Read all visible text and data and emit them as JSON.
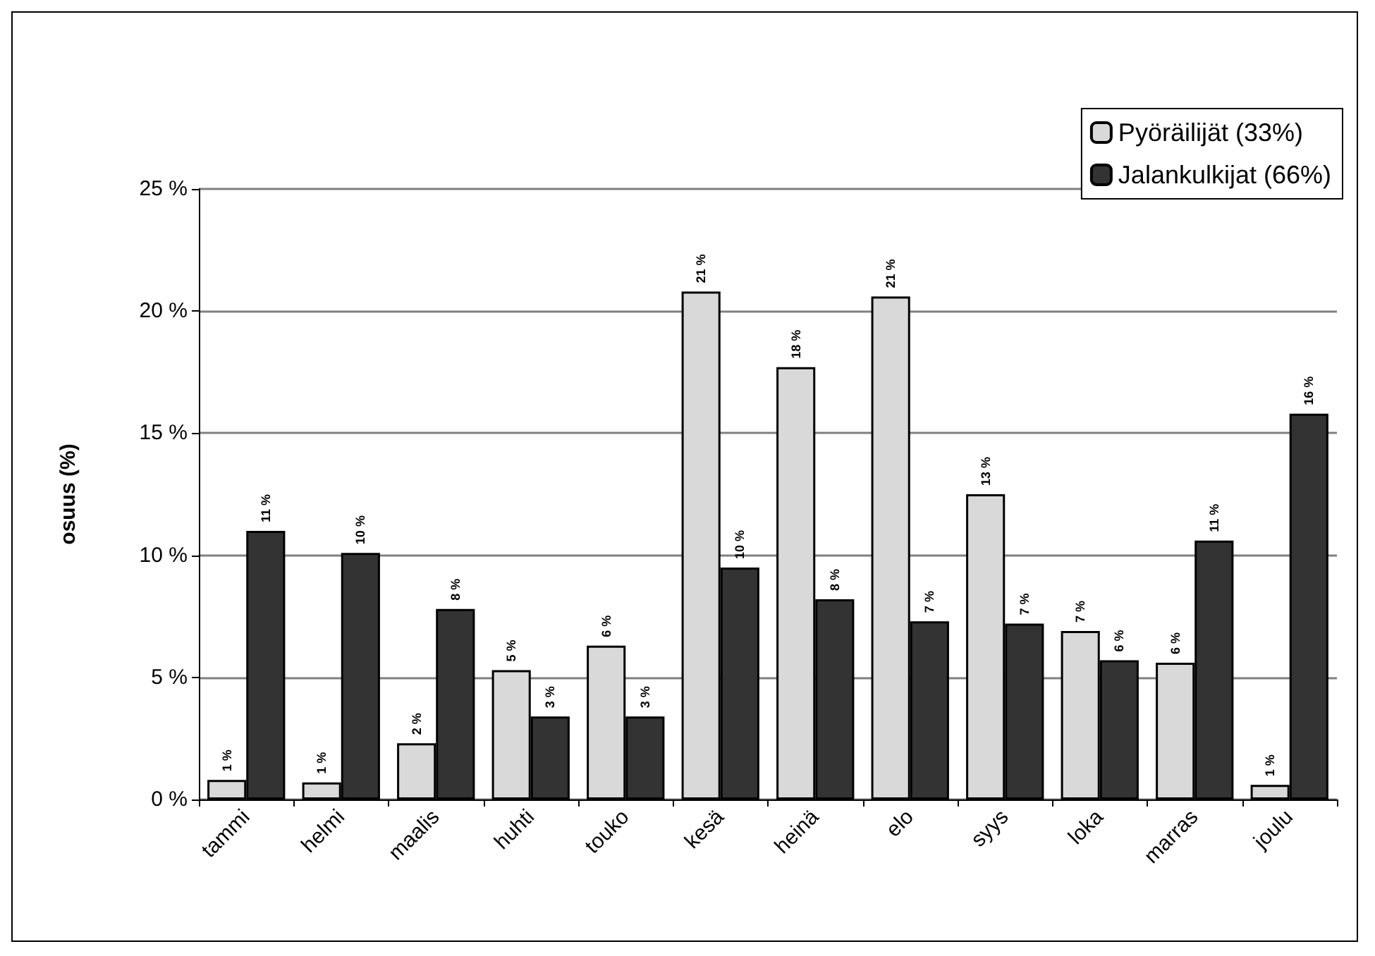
{
  "chart_data": {
    "type": "bar",
    "ylabel": "osuus (%)",
    "categories": [
      "tammi",
      "helmi",
      "maalis",
      "huhti",
      "touko",
      "kesä",
      "heinä",
      "elo",
      "syys",
      "loka",
      "marras",
      "joulu"
    ],
    "series": [
      {
        "name": "Pyöräilijät (33%)",
        "color": "#d9d9d9",
        "values": [
          0.8,
          0.7,
          2.3,
          5.3,
          6.3,
          20.8,
          17.7,
          20.6,
          12.5,
          6.9,
          5.6,
          0.6
        ],
        "value_labels": [
          "1 %",
          "1 %",
          "2 %",
          "5 %",
          "6 %",
          "21 %",
          "18 %",
          "21 %",
          "13 %",
          "7 %",
          "6 %",
          "1 %"
        ]
      },
      {
        "name": "Jalankulkijat (66%)",
        "color": "#333333",
        "values": [
          11.0,
          10.1,
          7.8,
          3.4,
          3.4,
          9.5,
          8.2,
          7.3,
          7.2,
          5.7,
          10.6,
          15.8
        ],
        "value_labels": [
          "11 %",
          "10 %",
          "8 %",
          "3 %",
          "3 %",
          "10 %",
          "8 %",
          "7 %",
          "7 %",
          "6 %",
          "11 %",
          "16 %"
        ]
      }
    ],
    "ylim": [
      0,
      25
    ],
    "yticks": [
      {
        "value": 0,
        "label": "0 %"
      },
      {
        "value": 5,
        "label": "5 %"
      },
      {
        "value": 10,
        "label": "10 %"
      },
      {
        "value": 15,
        "label": "15 %"
      },
      {
        "value": 20,
        "label": "20 %"
      },
      {
        "value": 25,
        "label": "25 %"
      }
    ],
    "grid": "y",
    "legend": "top right"
  }
}
